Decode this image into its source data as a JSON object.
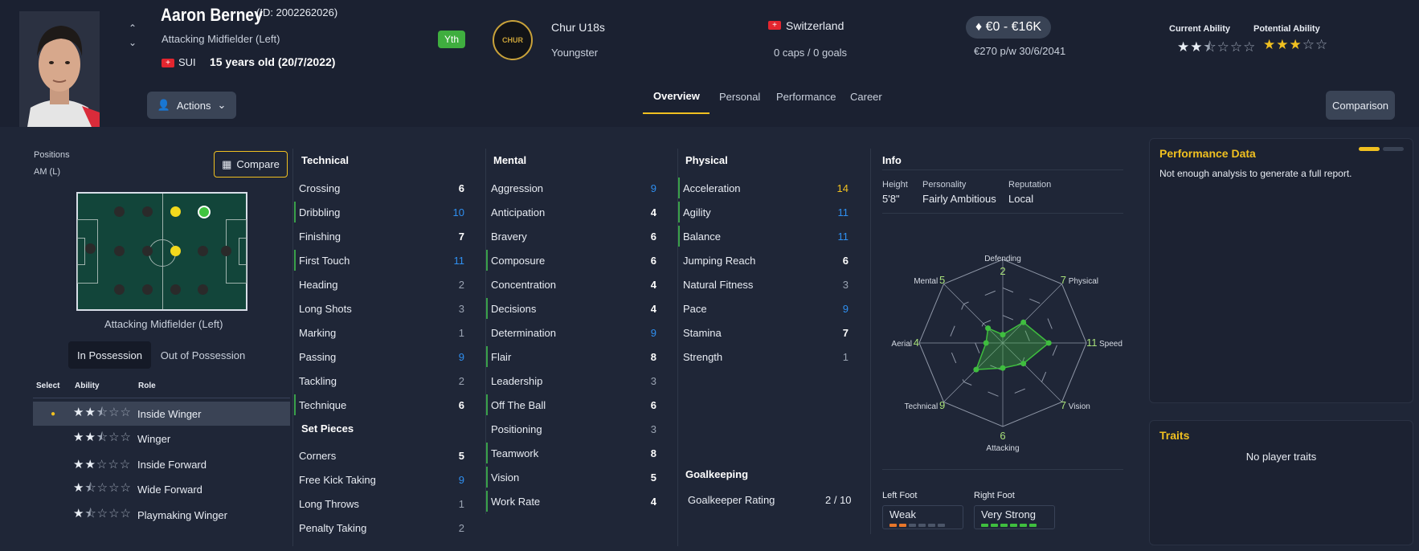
{
  "player": {
    "name": "Aaron Berney",
    "id": "(ID: 2002262026)",
    "position_long": "Attacking Midfielder (Left)",
    "nationality": "SUI",
    "age": "15 years old (20/7/2022)",
    "badge": "Yth"
  },
  "club": {
    "name": "Chur U18s",
    "status": "Youngster",
    "logo_text": "CHUR"
  },
  "country": {
    "name": "Switzerland",
    "caps": "0 caps / 0 goals"
  },
  "value": {
    "range": "€0 - €16K",
    "wage": "€270 p/w 30/6/2041"
  },
  "ability": {
    "current_label": "Current Ability",
    "potential_label": "Potential Ability",
    "current_stars": 2.5,
    "potential_stars": 3
  },
  "actions_label": "Actions",
  "comparison_label": "Comparison",
  "tabs": [
    "Overview",
    "Personal",
    "Performance",
    "Career"
  ],
  "positions": {
    "label": "Positions",
    "value": "AM (L)",
    "compare_label": "Compare",
    "pitch_caption": "Attacking Midfielder (Left)"
  },
  "possession": {
    "in": "In Possession",
    "out": "Out of Possession"
  },
  "roles_header": {
    "select": "Select",
    "ability": "Ability",
    "role": "Role"
  },
  "roles": [
    {
      "name": "Inside Winger",
      "stars": 2.5,
      "selected": true
    },
    {
      "name": "Winger",
      "stars": 2.5
    },
    {
      "name": "Inside Forward",
      "stars": 2
    },
    {
      "name": "Wide Forward",
      "stars": 1.5
    },
    {
      "name": "Playmaking Winger",
      "stars": 1.5
    }
  ],
  "technical": {
    "title": "Technical",
    "rows": [
      {
        "name": "Crossing",
        "value": "6",
        "style": "w"
      },
      {
        "name": "Dribbling",
        "value": "10",
        "style": "b",
        "hl": true
      },
      {
        "name": "Finishing",
        "value": "7",
        "style": "w"
      },
      {
        "name": "First Touch",
        "value": "11",
        "style": "b",
        "hl": true
      },
      {
        "name": "Heading",
        "value": "2",
        "style": "d"
      },
      {
        "name": "Long Shots",
        "value": "3",
        "style": "d"
      },
      {
        "name": "Marking",
        "value": "1",
        "style": "d"
      },
      {
        "name": "Passing",
        "value": "9",
        "style": "b"
      },
      {
        "name": "Tackling",
        "value": "2",
        "style": "d"
      },
      {
        "name": "Technique",
        "value": "6",
        "style": "w",
        "hl": true
      }
    ]
  },
  "set_pieces": {
    "title": "Set Pieces",
    "rows": [
      {
        "name": "Corners",
        "value": "5",
        "style": "w"
      },
      {
        "name": "Free Kick Taking",
        "value": "9",
        "style": "b"
      },
      {
        "name": "Long Throws",
        "value": "1",
        "style": "d"
      },
      {
        "name": "Penalty Taking",
        "value": "2",
        "style": "d"
      }
    ]
  },
  "mental": {
    "title": "Mental",
    "rows": [
      {
        "name": "Aggression",
        "value": "9",
        "style": "b"
      },
      {
        "name": "Anticipation",
        "value": "4",
        "style": "w"
      },
      {
        "name": "Bravery",
        "value": "6",
        "style": "w"
      },
      {
        "name": "Composure",
        "value": "6",
        "style": "w",
        "hl": true
      },
      {
        "name": "Concentration",
        "value": "4",
        "style": "w"
      },
      {
        "name": "Decisions",
        "value": "4",
        "style": "w",
        "hl": true
      },
      {
        "name": "Determination",
        "value": "9",
        "style": "b"
      },
      {
        "name": "Flair",
        "value": "8",
        "style": "w",
        "hl": true
      },
      {
        "name": "Leadership",
        "value": "3",
        "style": "d"
      },
      {
        "name": "Off The Ball",
        "value": "6",
        "style": "w",
        "hl": true
      },
      {
        "name": "Positioning",
        "value": "3",
        "style": "d"
      },
      {
        "name": "Teamwork",
        "value": "8",
        "style": "w",
        "hl": true
      },
      {
        "name": "Vision",
        "value": "5",
        "style": "w",
        "hl": true
      },
      {
        "name": "Work Rate",
        "value": "4",
        "style": "w",
        "hl": true
      }
    ]
  },
  "physical": {
    "title": "Physical",
    "rows": [
      {
        "name": "Acceleration",
        "value": "14",
        "style": "y",
        "hl": true
      },
      {
        "name": "Agility",
        "value": "11",
        "style": "b",
        "hl": true
      },
      {
        "name": "Balance",
        "value": "11",
        "style": "b",
        "hl": true
      },
      {
        "name": "Jumping Reach",
        "value": "6",
        "style": "w"
      },
      {
        "name": "Natural Fitness",
        "value": "3",
        "style": "d"
      },
      {
        "name": "Pace",
        "value": "9",
        "style": "b"
      },
      {
        "name": "Stamina",
        "value": "7",
        "style": "w"
      },
      {
        "name": "Strength",
        "value": "1",
        "style": "d"
      }
    ]
  },
  "goalkeeping": {
    "title": "Goalkeeping",
    "label": "Goalkeeper Rating",
    "value": "2 / 10"
  },
  "info": {
    "title": "Info",
    "height_label": "Height",
    "height": "5'8\"",
    "personality_label": "Personality",
    "personality": "Fairly Ambitious",
    "reputation_label": "Reputation",
    "reputation": "Local",
    "left_foot_label": "Left Foot",
    "left_foot": "Weak",
    "left_foot_level": 2,
    "right_foot_label": "Right Foot",
    "right_foot": "Very Strong",
    "right_foot_level": 6
  },
  "radar": [
    {
      "axis": "Defending",
      "value": "2"
    },
    {
      "axis": "Physical",
      "value": "7"
    },
    {
      "axis": "Speed",
      "value": "11"
    },
    {
      "axis": "Vision",
      "value": "7"
    },
    {
      "axis": "Attacking",
      "value": "6"
    },
    {
      "axis": "Technical",
      "value": "9"
    },
    {
      "axis": "Aerial",
      "value": "4"
    },
    {
      "axis": "Mental",
      "value": "5"
    }
  ],
  "performance": {
    "title": "Performance Data",
    "text": "Not enough analysis to generate a full report."
  },
  "traits": {
    "title": "Traits",
    "text": "No player traits"
  },
  "colors": {
    "accent": "#f0c020",
    "blue_value": "#2f8ff0",
    "green": "#3fbe3f"
  }
}
